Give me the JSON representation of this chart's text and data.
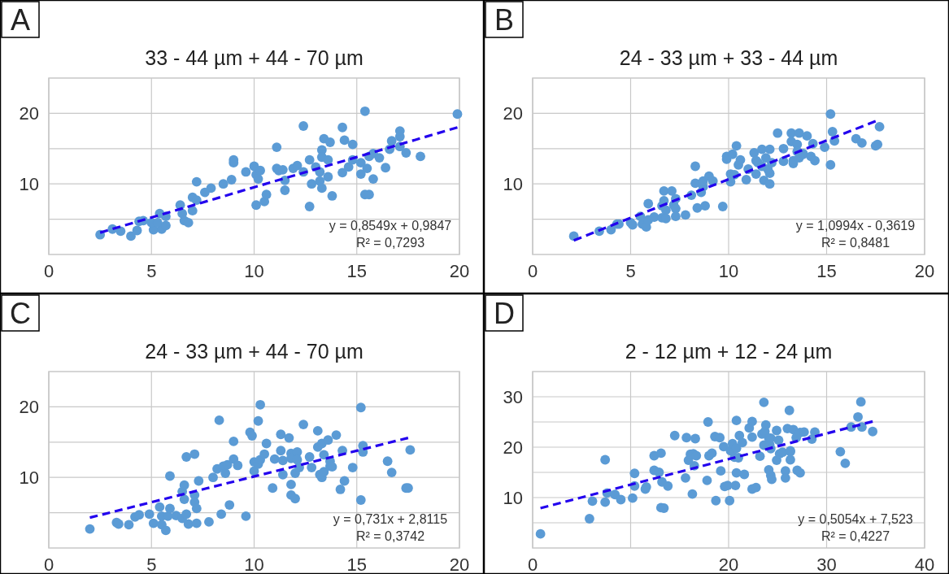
{
  "chart_data": [
    {
      "type": "scatter",
      "title": "33 - 44 µm + 44 - 70 µm",
      "annotations": [
        "A",
        "y = 0,8549x + 0,9847",
        "R² = 0,7293"
      ],
      "xlim": [
        0,
        20
      ],
      "ylim": [
        0,
        25
      ],
      "xticks": [
        0,
        5,
        10,
        15,
        20
      ],
      "yticks": [
        {
          "value": 5,
          "label": null
        },
        10,
        {
          "value": 15,
          "label": null
        },
        20
      ],
      "grid": true,
      "marker": "circle",
      "series": [
        {
          "color": "#5b9bd5",
          "x": [
            2.5,
            3.1,
            3.5,
            4.0,
            4.3,
            4.4,
            4.6,
            5.1,
            5.0,
            5.4,
            5.5,
            5.7,
            5.7,
            5.3,
            6.4,
            6.5,
            6.6,
            6.8,
            7.0,
            7.0,
            7.2,
            7.2,
            7.6,
            7.9,
            8.5,
            8.9,
            9.0,
            9.0,
            9.6,
            10.0,
            10.1,
            10.2,
            10.3,
            10.1,
            10.5,
            10.6,
            11.1,
            11.1,
            11.2,
            11.4,
            11.5,
            11.5,
            11.9,
            12.1,
            12.4,
            12.4,
            12.7,
            12.7,
            12.8,
            13.0,
            13.2,
            13.3,
            13.3,
            13.4,
            13.2,
            13.3,
            13.6,
            13.6,
            13.7,
            13.8,
            14.3,
            14.3,
            14.4,
            14.6,
            14.8,
            14.8,
            15.2,
            15.2,
            15.4,
            15.4,
            15.6,
            15.5,
            15.6,
            15.8,
            15.8,
            16.1,
            16.4,
            16.6,
            16.7,
            17.1,
            17.1,
            17.1,
            17.4,
            18.1,
            19.9
          ],
          "values": [
            2.8,
            3.6,
            3.3,
            2.6,
            3.4,
            4.7,
            4.8,
            3.5,
            4.5,
            5.8,
            3.6,
            5.4,
            4.1,
            4.5,
            7.0,
            5.8,
            4.8,
            4.5,
            8.1,
            6.2,
            7.7,
            10.3,
            8.8,
            9.4,
            10.0,
            10.6,
            13.4,
            13.0,
            11.7,
            12.5,
            11.3,
            10.7,
            11.9,
            7.0,
            7.5,
            8.5,
            15.2,
            12.2,
            11.9,
            12.0,
            10.5,
            9.1,
            12.2,
            12.6,
            11.7,
            18.2,
            6.8,
            13.4,
            10.0,
            12.4,
            11.7,
            14.8,
            13.8,
            16.4,
            10.4,
            9.4,
            13.4,
            11.0,
            15.9,
            8.3,
            18.0,
            11.6,
            16.2,
            12.4,
            15.6,
            13.4,
            11.4,
            13.0,
            20.3,
            8.5,
            8.5,
            12.2,
            13.9,
            10.7,
            14.3,
            13.7,
            12.3,
            14.9,
            16.1,
            16.7,
            17.5,
            15.3,
            14.4,
            13.9,
            19.9
          ]
        },
        {
          "type": "line",
          "color": "#2200ee",
          "line_style": "dashed",
          "marker": "none",
          "x": [
            2.5,
            19.9
          ],
          "values": [
            3.1,
            18.0
          ]
        }
      ]
    },
    {
      "type": "scatter",
      "title": "24 - 33 µm + 33 - 44 µm",
      "annotations": [
        "B",
        "y = 1,0994x - 0,3619",
        "R² = 0,8481"
      ],
      "xlim": [
        0,
        20
      ],
      "ylim": [
        0,
        25
      ],
      "xticks": [
        0,
        5,
        10,
        15,
        20
      ],
      "yticks": [
        {
          "value": 5,
          "label": null
        },
        10,
        {
          "value": 15,
          "label": null
        },
        20
      ],
      "grid": true,
      "marker": "circle",
      "series": [
        {
          "color": "#5b9bd5",
          "x": [
            2.1,
            3.4,
            4.0,
            4.3,
            4.4,
            5.0,
            5.1,
            5.5,
            5.6,
            5.8,
            5.9,
            5.9,
            6.2,
            6.6,
            6.6,
            6.7,
            6.7,
            6.8,
            6.8,
            7.1,
            7.2,
            7.3,
            7.3,
            7.3,
            7.8,
            8.1,
            8.3,
            8.3,
            8.4,
            8.6,
            8.7,
            8.8,
            8.7,
            9.0,
            9.2,
            9.7,
            9.9,
            9.9,
            10.1,
            10.1,
            10.2,
            10.3,
            10.4,
            10.5,
            10.6,
            11.0,
            10.9,
            11.3,
            11.4,
            11.4,
            11.5,
            11.7,
            11.7,
            11.8,
            11.9,
            12.0,
            12.1,
            12.1,
            12.1,
            12.2,
            12.5,
            12.8,
            12.8,
            13.2,
            13.2,
            13.3,
            13.3,
            13.5,
            13.5,
            13.6,
            13.6,
            13.8,
            13.8,
            14.0,
            14.2,
            14.3,
            14.4,
            14.9,
            15.2,
            15.2,
            15.3,
            15.4,
            16.5,
            16.8,
            17.5,
            17.6,
            17.7
          ],
          "values": [
            2.6,
            3.3,
            3.5,
            4.3,
            4.3,
            4.5,
            4.2,
            5.4,
            4.3,
            3.9,
            4.9,
            7.2,
            5.3,
            5.2,
            6.9,
            7.6,
            9.0,
            6.3,
            5.1,
            9.0,
            7.0,
            6.5,
            7.9,
            5.4,
            5.6,
            8.4,
            10.1,
            12.5,
            6.6,
            8.8,
            9.6,
            6.9,
            10.4,
            11.1,
            10.4,
            6.8,
            13.5,
            13.9,
            11.4,
            10.3,
            14.2,
            11.3,
            15.4,
            12.7,
            13.4,
            12.1,
            10.6,
            14.4,
            13.3,
            11.4,
            13.0,
            12.5,
            14.9,
            10.5,
            13.7,
            12.1,
            10.0,
            11.5,
            14.9,
            13.0,
            17.2,
            15.0,
            13.2,
            17.2,
            16.0,
            13.3,
            12.9,
            15.6,
            14.6,
            13.7,
            17.2,
            14.2,
            14.3,
            16.8,
            13.9,
            15.7,
            13.3,
            15.2,
            19.9,
            12.7,
            17.4,
            16.1,
            16.4,
            15.8,
            15.4,
            15.6,
            18.1
          ]
        },
        {
          "type": "line",
          "color": "#2200ee",
          "line_style": "dashed",
          "marker": "none",
          "x": [
            2.1,
            17.5
          ],
          "values": [
            2.0,
            18.9
          ]
        }
      ]
    },
    {
      "type": "scatter",
      "title": "24 - 33 µm + 44 - 70 µm",
      "annotations": [
        "C",
        "y = 0,731x + 2,8115",
        "R² = 0,3742"
      ],
      "xlim": [
        0,
        20
      ],
      "ylim": [
        0,
        25
      ],
      "xticks": [
        0,
        5,
        10,
        15,
        20
      ],
      "yticks": [
        {
          "value": 5,
          "label": null
        },
        10,
        {
          "value": 15,
          "label": null
        },
        20
      ],
      "grid": true,
      "marker": "circle",
      "series": [
        {
          "color": "#5b9bd5",
          "x": [
            2.0,
            3.3,
            3.4,
            3.9,
            4.2,
            4.4,
            4.9,
            5.1,
            5.4,
            5.5,
            5.5,
            5.7,
            5.8,
            5.9,
            5.9,
            6.2,
            6.5,
            6.6,
            6.5,
            6.6,
            6.7,
            6.7,
            6.8,
            7.1,
            7.1,
            7.1,
            7.2,
            7.2,
            7.3,
            7.8,
            8.0,
            8.2,
            8.3,
            8.4,
            8.5,
            8.6,
            8.7,
            8.8,
            9.0,
            9.0,
            9.2,
            9.6,
            9.8,
            9.9,
            10.0,
            10.0,
            10.2,
            10.2,
            10.3,
            10.3,
            10.5,
            10.6,
            10.9,
            11.0,
            11.3,
            11.3,
            11.4,
            11.4,
            11.7,
            11.8,
            11.8,
            11.8,
            11.8,
            12.0,
            12.0,
            12.1,
            12.1,
            12.2,
            12.4,
            12.7,
            12.8,
            13.1,
            13.1,
            13.2,
            13.3,
            13.3,
            13.4,
            13.4,
            13.6,
            13.7,
            13.7,
            13.8,
            14.0,
            14.2,
            14.3,
            14.4,
            14.8,
            15.2,
            15.2,
            15.3,
            15.3,
            16.5,
            16.7,
            17.4,
            17.5,
            17.6
          ],
          "values": [
            2.7,
            3.6,
            3.4,
            3.3,
            4.4,
            4.7,
            4.8,
            3.5,
            5.8,
            3.3,
            4.5,
            2.5,
            4.5,
            5.6,
            10.2,
            4.6,
            8.0,
            6.9,
            4.2,
            8.9,
            12.9,
            4.8,
            3.4,
            13.3,
            7.5,
            6.5,
            5.6,
            3.5,
            9.5,
            3.7,
            10.0,
            11.2,
            18.1,
            4.8,
            11.6,
            10.6,
            11.8,
            6.1,
            15.1,
            12.6,
            11.7,
            4.5,
            16.4,
            15.9,
            12.2,
            10.9,
            11.9,
            18.0,
            12.5,
            20.3,
            13.3,
            14.8,
            8.5,
            12.6,
            16.1,
            13.8,
            10.4,
            12.4,
            15.6,
            7.5,
            9.0,
            13.4,
            12.7,
            7.0,
            10.6,
            13.6,
            12.5,
            11.4,
            17.5,
            12.9,
            11.4,
            16.6,
            14.3,
            10.4,
            10.0,
            14.8,
            10.8,
            13.2,
            15.3,
            11.6,
            12.3,
            11.5,
            16.0,
            8.3,
            13.8,
            9.5,
            11.4,
            19.9,
            6.8,
            14.5,
            13.6,
            12.3,
            10.7,
            8.5,
            8.5,
            13.9
          ]
        },
        {
          "type": "line",
          "color": "#2200ee",
          "line_style": "dashed",
          "marker": "none",
          "x": [
            2.0,
            17.5
          ],
          "values": [
            4.3,
            15.6
          ]
        }
      ]
    },
    {
      "type": "scatter",
      "title": "2 - 12 µm + 12 - 24 µm",
      "annotations": [
        "D",
        "y = 0,5054x + 7,523",
        "R² = 0,4227"
      ],
      "xlim": [
        0,
        40
      ],
      "ylim": [
        0,
        35
      ],
      "xticks": [
        0,
        {
          "value": 10,
          "label": null
        },
        20,
        30,
        40
      ],
      "yticks": [
        {
          "value": 5,
          "label": null
        },
        10,
        {
          "value": 15,
          "label": null
        },
        20,
        {
          "value": 25,
          "label": null
        },
        30
      ],
      "grid": true,
      "marker": "circle",
      "series": [
        {
          "color": "#5b9bd5",
          "x": [
            0.8,
            5.8,
            6.1,
            7.4,
            7.4,
            7.6,
            8.4,
            9.0,
            10.2,
            10.4,
            10.4,
            11.5,
            11.6,
            12.4,
            12.4,
            12.9,
            13.1,
            13.2,
            13.1,
            13.4,
            13.8,
            14.5,
            15.6,
            15.7,
            15.9,
            16.1,
            16.3,
            16.4,
            16.5,
            16.6,
            16.7,
            17.8,
            17.9,
            18.0,
            18.3,
            18.6,
            18.7,
            19.1,
            19.2,
            19.5,
            19.6,
            19.9,
            20.1,
            20.2,
            20.4,
            20.6,
            20.7,
            20.8,
            20.8,
            20.8,
            21.0,
            21.1,
            21.4,
            21.6,
            22.1,
            22.4,
            22.4,
            22.4,
            22.8,
            23.2,
            23.4,
            23.6,
            23.6,
            23.7,
            23.8,
            24.1,
            24.1,
            24.2,
            24.3,
            24.3,
            24.4,
            24.3,
            24.9,
            24.9,
            25.1,
            25.2,
            25.5,
            25.8,
            25.8,
            26.0,
            26.2,
            26.3,
            26.3,
            26.3,
            26.6,
            26.9,
            27.0,
            27.3,
            27.3,
            27.7,
            28.5,
            28.8,
            31.4,
            31.9,
            32.5,
            33.2,
            33.5,
            33.6,
            34.7
          ],
          "values": [
            2.8,
            5.8,
            9.3,
            17.5,
            9.1,
            10.9,
            10.6,
            9.6,
            9.9,
            14.8,
            12.3,
            11.7,
            12.1,
            18.3,
            15.4,
            15.0,
            18.8,
            13.1,
            8.0,
            7.9,
            12.3,
            22.3,
            13.9,
            21.9,
            17.4,
            18.6,
            10.7,
            18.7,
            16.3,
            21.7,
            18.3,
            13.4,
            25.0,
            18.3,
            18.8,
            22.1,
            9.4,
            21.9,
            15.3,
            20.1,
            12.2,
            12.4,
            9.4,
            19.3,
            20.7,
            18.0,
            12.4,
            14.9,
            25.3,
            19.8,
            17.9,
            22.3,
            20.9,
            14.6,
            23.8,
            25.1,
            22.0,
            11.7,
            12.0,
            18.2,
            22.6,
            20.4,
            28.9,
            23.1,
            24.4,
            21.8,
            15.5,
            20.5,
            14.4,
            21.8,
            13.6,
            19.7,
            23.3,
            17.4,
            21.4,
            18.7,
            19.0,
            15.3,
            13.9,
            23.7,
            27.3,
            19.3,
            17.5,
            19.1,
            23.5,
            21.9,
            15.4,
            22.9,
            14.9,
            23.0,
            21.6,
            23.0,
            19.1,
            16.8,
            24.0,
            26.0,
            29.0,
            24.0,
            23.1
          ]
        },
        {
          "type": "line",
          "color": "#2200ee",
          "line_style": "dashed",
          "marker": "none",
          "x": [
            0.8,
            34.7
          ],
          "values": [
            7.9,
            25.1
          ]
        }
      ]
    }
  ]
}
